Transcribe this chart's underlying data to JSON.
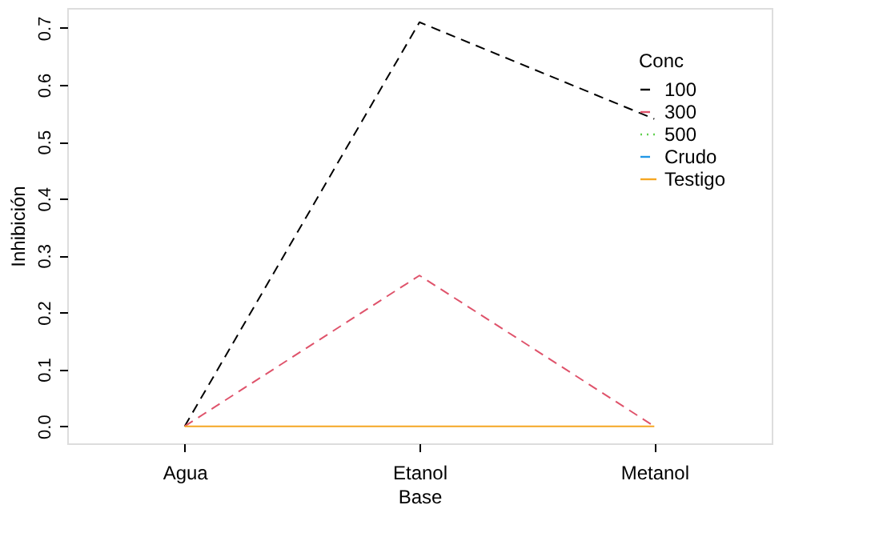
{
  "chart_data": {
    "type": "line",
    "xlabel": "Base",
    "ylabel": "Inhibición",
    "legend_title": "Conc",
    "categories": [
      "Agua",
      "Etanol",
      "Metanol"
    ],
    "ylim": [
      -0.03,
      0.735
    ],
    "yticks": [
      {
        "value": 0,
        "label": "0.0"
      },
      0.1,
      0.2,
      0.3,
      0.4,
      0.5,
      0.6,
      0.7
    ],
    "grid": false,
    "legend": "top right",
    "marker": "none",
    "series": [
      {
        "name": "100",
        "color": "#000000",
        "line_style": "dashed",
        "values": [
          0,
          0.71,
          0.54
        ]
      },
      {
        "name": "300",
        "color": "#df536b",
        "line_style": "dashed",
        "values": [
          0,
          0.265,
          0
        ]
      },
      {
        "name": "500",
        "color": "#61d04f",
        "line_style": "dotted",
        "values": [
          null,
          null,
          null
        ]
      },
      {
        "name": "Crudo",
        "color": "#2297e6",
        "line_style": "dashed",
        "values": [
          null,
          null,
          null
        ]
      },
      {
        "name": "Testigo",
        "color": "#f5a623",
        "line_style": "solid",
        "values": [
          0,
          0,
          0
        ]
      }
    ]
  }
}
